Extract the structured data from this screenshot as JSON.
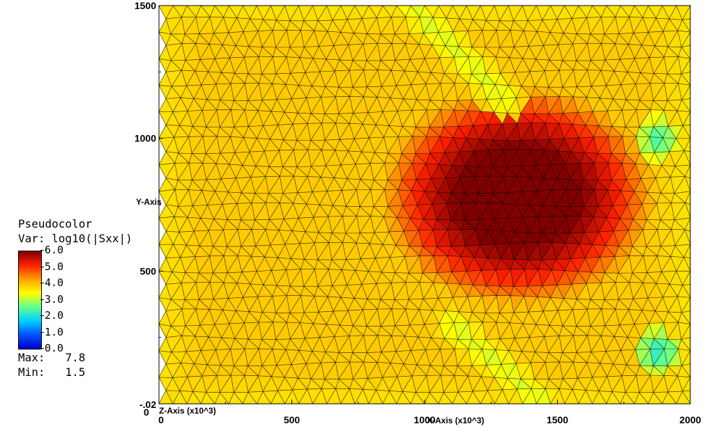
{
  "legend": {
    "plot_type": "Pseudocolor",
    "var_label": "Var: log10(|Sxx|)",
    "ticks": [
      "6.0",
      "5.0",
      "4.0",
      "3.0",
      "2.0",
      "1.0",
      "0.0"
    ],
    "max_label": "Max:",
    "max_value": "7.8",
    "min_label": "Min:",
    "min_value": "1.5"
  },
  "chart_data": {
    "type": "heatmap",
    "xlabel": "X-Axis (x10^3)",
    "ylabel": "Y-Axis",
    "zlabel": "Z-Axis (x10^3)",
    "x_ticks": [
      "0",
      "500",
      "1000",
      "1500",
      "2000"
    ],
    "y_ticks": [
      "500",
      "1000",
      "1500"
    ],
    "origin_labels": [
      "-.02",
      "0"
    ],
    "xlim": [
      0,
      2000
    ],
    "ylim": [
      0,
      1500
    ],
    "color_range": [
      0.0,
      6.0
    ],
    "data_max": 7.8,
    "data_min": 1.5,
    "colormap": [
      "#0000c8",
      "#0050ff",
      "#00d0ff",
      "#60ff90",
      "#ffff00",
      "#ffa000",
      "#ff2000",
      "#800000"
    ],
    "mesh": "triangulated",
    "features": [
      {
        "kind": "hotspot",
        "center": [
          1350,
          780
        ],
        "peak": 6.5,
        "radius": [
          520,
          420
        ]
      },
      {
        "kind": "low_band",
        "from": [
          950,
          1500
        ],
        "to": [
          1300,
          1150
        ],
        "value": 3.2
      },
      {
        "kind": "low_band",
        "from": [
          1100,
          300
        ],
        "to": [
          1450,
          0
        ],
        "value": 3.2
      },
      {
        "kind": "low_patch",
        "center": [
          1880,
          200
        ],
        "value": 2.0
      },
      {
        "kind": "low_patch",
        "center": [
          1880,
          1000
        ],
        "value": 2.2
      }
    ]
  }
}
